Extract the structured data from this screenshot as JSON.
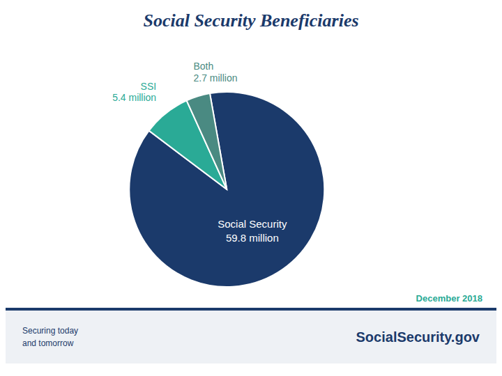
{
  "chart_data": {
    "type": "pie",
    "title": "Social Security Beneficiaries",
    "categories": [
      "Social Security",
      "SSI",
      "Both"
    ],
    "values": [
      59.8,
      5.4,
      2.7
    ],
    "value_labels": [
      "59.8 million",
      "5.4 million",
      "2.7 million"
    ],
    "colors": [
      "#1b3a6b",
      "#2aaa96",
      "#4a8a82"
    ],
    "data_labels": true,
    "annotations": [
      "December 2018",
      "Securing today\nand tomorrow",
      "SocialSecurity.gov"
    ]
  }
}
